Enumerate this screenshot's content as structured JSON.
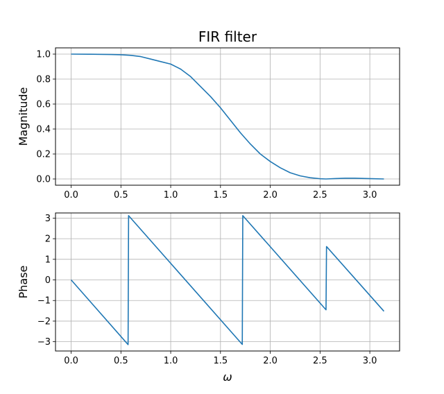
{
  "figure": {
    "title": "FIR filter",
    "xlabel": "ω",
    "color_line": "#1f77b4"
  },
  "chart_data": [
    {
      "type": "line",
      "ylabel": "Magnitude",
      "xlim": [
        -0.157,
        3.299
      ],
      "ylim": [
        -0.05,
        1.05
      ],
      "xticks": [
        0.0,
        0.5,
        1.0,
        1.5,
        2.0,
        2.5,
        3.0
      ],
      "yticks": [
        0.0,
        0.2,
        0.4,
        0.6,
        0.8,
        1.0
      ],
      "xtick_labels": [
        "0.0",
        "0.5",
        "1.0",
        "1.5",
        "2.0",
        "2.5",
        "3.0"
      ],
      "ytick_labels": [
        "0.0",
        "0.2",
        "0.4",
        "0.6",
        "0.8",
        "1.0"
      ],
      "grid": true,
      "series": [
        {
          "x": [
            0.0,
            0.2,
            0.4,
            0.5,
            0.6,
            0.7,
            0.8,
            0.9,
            1.0,
            1.1,
            1.2,
            1.3,
            1.4,
            1.5,
            1.6,
            1.7,
            1.8,
            1.9,
            2.0,
            2.1,
            2.2,
            2.3,
            2.4,
            2.5,
            2.56,
            2.65,
            2.75,
            2.85,
            2.95,
            3.05,
            3.1416
          ],
          "y": [
            1.0,
            0.999,
            0.997,
            0.995,
            0.99,
            0.98,
            0.96,
            0.94,
            0.92,
            0.88,
            0.82,
            0.74,
            0.66,
            0.57,
            0.47,
            0.37,
            0.28,
            0.2,
            0.14,
            0.09,
            0.05,
            0.025,
            0.01,
            0.002,
            0.0,
            0.003,
            0.006,
            0.006,
            0.004,
            0.002,
            0.0
          ]
        }
      ]
    },
    {
      "type": "line",
      "ylabel": "Phase",
      "xlim": [
        -0.157,
        3.299
      ],
      "ylim": [
        -3.45,
        3.25
      ],
      "xticks": [
        0.0,
        0.5,
        1.0,
        1.5,
        2.0,
        2.5,
        3.0
      ],
      "yticks": [
        -3,
        -2,
        -1,
        0,
        1,
        2,
        3
      ],
      "xtick_labels": [
        "0.0",
        "0.5",
        "1.0",
        "1.5",
        "2.0",
        "2.5",
        "3.0"
      ],
      "ytick_labels": [
        "−3",
        "−2",
        "−1",
        "0",
        "1",
        "2",
        "3"
      ],
      "grid": true,
      "series": [
        {
          "x": [
            0.0,
            0.572,
            0.577,
            1.719,
            1.724,
            2.56,
            2.565,
            3.1416
          ],
          "y": [
            0.0,
            -3.14,
            3.12,
            -3.13,
            3.12,
            -1.45,
            1.62,
            -1.52
          ]
        }
      ]
    }
  ]
}
